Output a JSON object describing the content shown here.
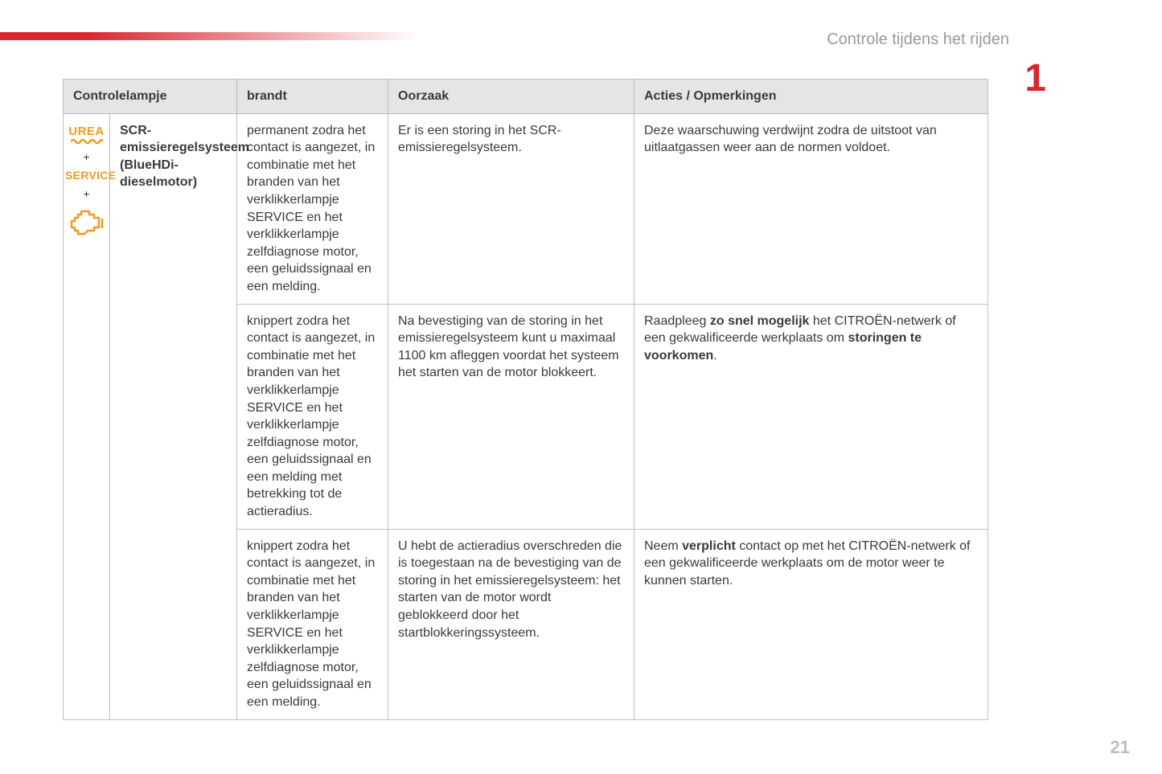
{
  "page": {
    "section_title": "Controle tijdens het rijden",
    "chapter_number": "1",
    "page_number": "21"
  },
  "colors": {
    "accent_red": "#d9262f",
    "icon_orange": "#f29b1f",
    "header_bg": "#e5e5e5",
    "border": "#bfbfbf",
    "text": "#3a3a3a",
    "muted": "#9a9a9a"
  },
  "table": {
    "headers": {
      "controlelampje": "Controlelampje",
      "brandt": "brandt",
      "oorzaak": "Oorzaak",
      "acties": "Acties / Opmerkingen"
    },
    "lamp": {
      "icons": {
        "urea": "UREA",
        "plus1": "+",
        "service": "SERVICE",
        "plus2": "+",
        "engine_icon_name": "engine-check-icon"
      },
      "name": "SCR-emissieregelsysteem (BlueHDi-dieselmotor)"
    },
    "rows": [
      {
        "brandt": "permanent zodra het contact is aangezet, in combinatie met het branden van het verklikkerlampje SERVICE en het verklikkerlampje zelfdiagnose motor, een geluidssignaal en een melding.",
        "oorzaak": "Er is een storing in het SCR-emissieregelsysteem.",
        "acties_html": "Deze waarschuwing verdwijnt zodra de uitstoot van uitlaatgassen weer aan de normen voldoet."
      },
      {
        "brandt": "knippert zodra het contact is aangezet, in combinatie met het branden van het verklikkerlampje SERVICE en het verklikkerlampje zelfdiagnose motor, een geluidssignaal en een melding met betrekking tot de actieradius.",
        "oorzaak": "Na bevestiging van de storing in het emissieregelsysteem kunt u maximaal 1100 km afleggen voordat het systeem het starten van de motor blokkeert.",
        "acties_html": "Raadpleeg <b>zo snel mogelijk</b> het CITROËN-netwerk of een gekwalificeerde werkplaats om <b>storingen te voorkomen</b>."
      },
      {
        "brandt": "knippert zodra het contact is aangezet, in combinatie met het branden van het verklikkerlampje SERVICE en het verklikkerlampje zelfdiagnose motor, een geluidssignaal en een melding.",
        "oorzaak": "U hebt de actieradius overschreden die is toegestaan na de bevestiging van de storing in het emissieregelsysteem: het starten van de motor wordt geblokkeerd door het startblokkeringssysteem.",
        "acties_html": "Neem <b>verplicht</b> contact op met het CITROËN-netwerk of een gekwalificeerde werkplaats om de motor weer te kunnen starten."
      }
    ]
  }
}
